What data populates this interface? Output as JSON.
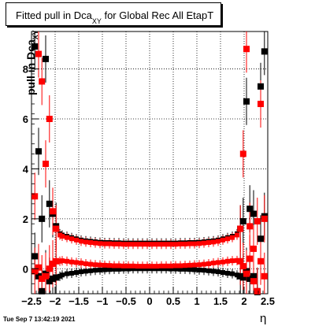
{
  "chart_data": {
    "type": "scatter",
    "title": "Fitted pull in Dca",
    "title_subscript": "XY",
    "title_rest": " for Global Rec All EtapT",
    "ylabel": "pull in Dca",
    "ylabel_subscript": "XY",
    "xlabel": "η",
    "xlim": [
      -2.5,
      2.5
    ],
    "ylim": [
      -1.0,
      9.5
    ],
    "x_ticks": [
      "−2.5",
      "−2",
      "−1.5",
      "−1",
      "−0.5",
      "0",
      "0.5",
      "1",
      "1.5",
      "2",
      "2.5"
    ],
    "y_ticks": [
      "0",
      "2",
      "4",
      "6",
      "8"
    ],
    "grid": true,
    "series": [
      {
        "color": "#000000",
        "role": "upper",
        "x": [
          -2.43,
          -2.35,
          -2.28,
          -2.2,
          -2.12,
          -2.05,
          -1.98,
          -1.9,
          -1.85,
          -1.75,
          -1.65,
          -1.55,
          -1.45,
          -1.35,
          -1.25,
          -1.15,
          -1.05,
          -0.95,
          -0.85,
          -0.75,
          -0.65,
          -0.55,
          -0.45,
          -0.35,
          -0.25,
          -0.15,
          -0.05,
          0.05,
          0.15,
          0.25,
          0.35,
          0.45,
          0.55,
          0.65,
          0.75,
          0.85,
          0.95,
          1.05,
          1.15,
          1.25,
          1.35,
          1.45,
          1.55,
          1.65,
          1.75,
          1.85,
          1.92,
          1.98,
          2.05,
          2.12,
          2.2,
          2.28,
          2.35,
          2.43
        ],
        "y": [
          8.9,
          4.7,
          2.0,
          8.4,
          2.6,
          2.2,
          1.7,
          1.4,
          1.35,
          1.3,
          1.25,
          1.2,
          1.15,
          1.12,
          1.1,
          1.08,
          1.06,
          1.05,
          1.05,
          1.04,
          1.04,
          1.03,
          1.03,
          1.03,
          1.03,
          1.03,
          1.03,
          1.03,
          1.03,
          1.03,
          1.03,
          1.03,
          1.03,
          1.04,
          1.04,
          1.05,
          1.05,
          1.06,
          1.08,
          1.1,
          1.12,
          1.15,
          1.2,
          1.25,
          1.3,
          1.4,
          1.6,
          1.9,
          6.7,
          2.4,
          2.2,
          -0.9,
          7.3,
          8.7
        ]
      },
      {
        "color": "#000000",
        "role": "lower",
        "x": [
          -2.43,
          -2.35,
          -2.28,
          -2.2,
          -2.12,
          -2.05,
          -1.98,
          -1.9,
          -1.85,
          -1.75,
          -1.65,
          -1.55,
          -1.45,
          -1.35,
          -1.25,
          -1.15,
          -1.05,
          -0.95,
          -0.85,
          -0.75,
          -0.65,
          -0.55,
          -0.45,
          -0.35,
          -0.25,
          -0.15,
          -0.05,
          0.05,
          0.15,
          0.25,
          0.35,
          0.45,
          0.55,
          0.65,
          0.75,
          0.85,
          0.95,
          1.05,
          1.15,
          1.25,
          1.35,
          1.45,
          1.55,
          1.65,
          1.75,
          1.85,
          1.92,
          1.98,
          2.05,
          2.12,
          2.2,
          2.28,
          2.35,
          2.43
        ],
        "y": [
          0.5,
          -0.3,
          -0.9,
          -0.2,
          -0.5,
          -0.4,
          -0.35,
          -0.3,
          -0.25,
          -0.2,
          -0.18,
          -0.15,
          -0.12,
          -0.1,
          -0.08,
          -0.06,
          -0.05,
          -0.04,
          -0.03,
          -0.02,
          -0.02,
          -0.01,
          -0.01,
          0.0,
          0.0,
          0.0,
          0.0,
          0.0,
          0.0,
          0.0,
          0.0,
          -0.01,
          -0.01,
          -0.02,
          -0.02,
          -0.03,
          -0.04,
          -0.05,
          -0.06,
          -0.08,
          -0.1,
          -0.12,
          -0.15,
          -0.18,
          -0.2,
          -0.25,
          -0.3,
          -0.35,
          -0.1,
          -0.4,
          -0.3,
          -1.0,
          1.2,
          2.1
        ]
      },
      {
        "color": "#ff0000",
        "role": "upper",
        "x": [
          -2.43,
          -2.35,
          -2.28,
          -2.2,
          -2.12,
          -2.05,
          -1.98,
          -1.9,
          -1.85,
          -1.75,
          -1.65,
          -1.55,
          -1.45,
          -1.35,
          -1.25,
          -1.15,
          -1.05,
          -0.95,
          -0.85,
          -0.75,
          -0.65,
          -0.55,
          -0.45,
          -0.35,
          -0.25,
          -0.15,
          -0.05,
          0.05,
          0.15,
          0.25,
          0.35,
          0.45,
          0.55,
          0.65,
          0.75,
          0.85,
          0.95,
          1.05,
          1.15,
          1.25,
          1.35,
          1.45,
          1.55,
          1.65,
          1.75,
          1.85,
          1.92,
          1.98,
          2.05,
          2.12,
          2.2,
          2.28,
          2.35,
          2.43
        ],
        "y": [
          2.9,
          8.6,
          7.5,
          4.2,
          6.0,
          2.3,
          1.6,
          1.35,
          1.3,
          1.25,
          1.2,
          1.15,
          1.1,
          1.07,
          1.05,
          1.03,
          1.01,
          1.0,
          1.0,
          0.99,
          0.99,
          0.98,
          0.98,
          0.98,
          0.98,
          0.98,
          0.98,
          0.98,
          0.98,
          0.98,
          0.98,
          0.98,
          0.98,
          0.99,
          0.99,
          1.0,
          1.0,
          1.01,
          1.03,
          1.05,
          1.07,
          1.1,
          1.15,
          1.2,
          1.25,
          1.35,
          1.6,
          4.6,
          8.8,
          1.7,
          0.8,
          1.9,
          6.6,
          2.0
        ]
      },
      {
        "color": "#ff0000",
        "role": "lower",
        "x": [
          -2.43,
          -2.35,
          -2.28,
          -2.2,
          -2.12,
          -2.05,
          -1.98,
          -1.9,
          -1.85,
          -1.75,
          -1.65,
          -1.55,
          -1.45,
          -1.35,
          -1.25,
          -1.15,
          -1.05,
          -0.95,
          -0.85,
          -0.75,
          -0.65,
          -0.55,
          -0.45,
          -0.35,
          -0.25,
          -0.15,
          -0.05,
          0.05,
          0.15,
          0.25,
          0.35,
          0.45,
          0.55,
          0.65,
          0.75,
          0.85,
          0.95,
          1.05,
          1.15,
          1.25,
          1.35,
          1.45,
          1.55,
          1.65,
          1.75,
          1.85,
          1.92,
          1.98,
          2.05,
          2.12,
          2.2,
          2.28,
          2.35,
          2.43
        ],
        "y": [
          -0.1,
          0.05,
          -0.4,
          -0.3,
          0.0,
          0.2,
          0.3,
          0.3,
          0.32,
          0.3,
          0.27,
          0.25,
          0.23,
          0.2,
          0.18,
          0.16,
          0.15,
          0.14,
          0.13,
          0.12,
          0.12,
          0.11,
          0.11,
          0.11,
          0.1,
          0.1,
          0.1,
          0.1,
          0.1,
          0.11,
          0.11,
          0.11,
          0.12,
          0.12,
          0.13,
          0.14,
          0.15,
          0.16,
          0.18,
          0.2,
          0.23,
          0.25,
          0.27,
          0.3,
          0.32,
          0.33,
          0.3,
          0.1,
          -0.2,
          0.4,
          -0.5,
          -0.9,
          0.3,
          -0.3
        ]
      }
    ]
  },
  "footer": {
    "timestamp": "Tue Sep  7 13:42:19 2021"
  }
}
